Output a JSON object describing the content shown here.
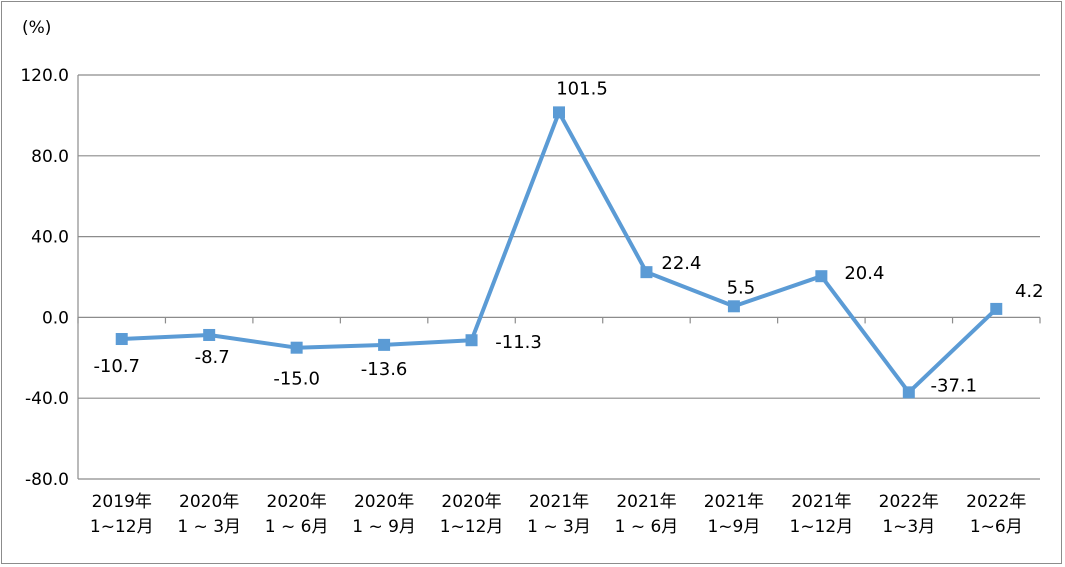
{
  "chart_data": {
    "type": "line",
    "unit_label": "(%)",
    "ylim": [
      -80,
      120
    ],
    "yticks": [
      "120.0",
      "80.0",
      "40.0",
      "0.0",
      "-40.0",
      "-80.0"
    ],
    "ytick_values": [
      120,
      80,
      40,
      0,
      -40,
      -80
    ],
    "grid": true,
    "categories": [
      [
        "2019年",
        "1~12月"
      ],
      [
        "2020年",
        "1 ~ 3月"
      ],
      [
        "2020年",
        "1 ~ 6月"
      ],
      [
        "2020年",
        "1 ~ 9月"
      ],
      [
        "2020年",
        "1~12月"
      ],
      [
        "2021年",
        "1 ~ 3月"
      ],
      [
        "2021年",
        "1 ~ 6月"
      ],
      [
        "2021年",
        "1~9月"
      ],
      [
        "2021年",
        "1~12月"
      ],
      [
        "2022年",
        "1~3月"
      ],
      [
        "2022年",
        "1~6月"
      ]
    ],
    "series": [
      {
        "values": [
          -10.7,
          -8.7,
          -15.0,
          -13.6,
          -11.3,
          101.5,
          22.4,
          5.5,
          20.4,
          -37.1,
          4.2
        ],
        "data_labels": [
          "-10.7",
          "-8.7",
          "-15.0",
          "-13.6",
          "-11.3",
          "101.5",
          "22.4",
          "5.5",
          "20.4",
          "-37.1",
          "4.2"
        ],
        "color": "#5b9bd5",
        "marker": "square"
      }
    ]
  }
}
